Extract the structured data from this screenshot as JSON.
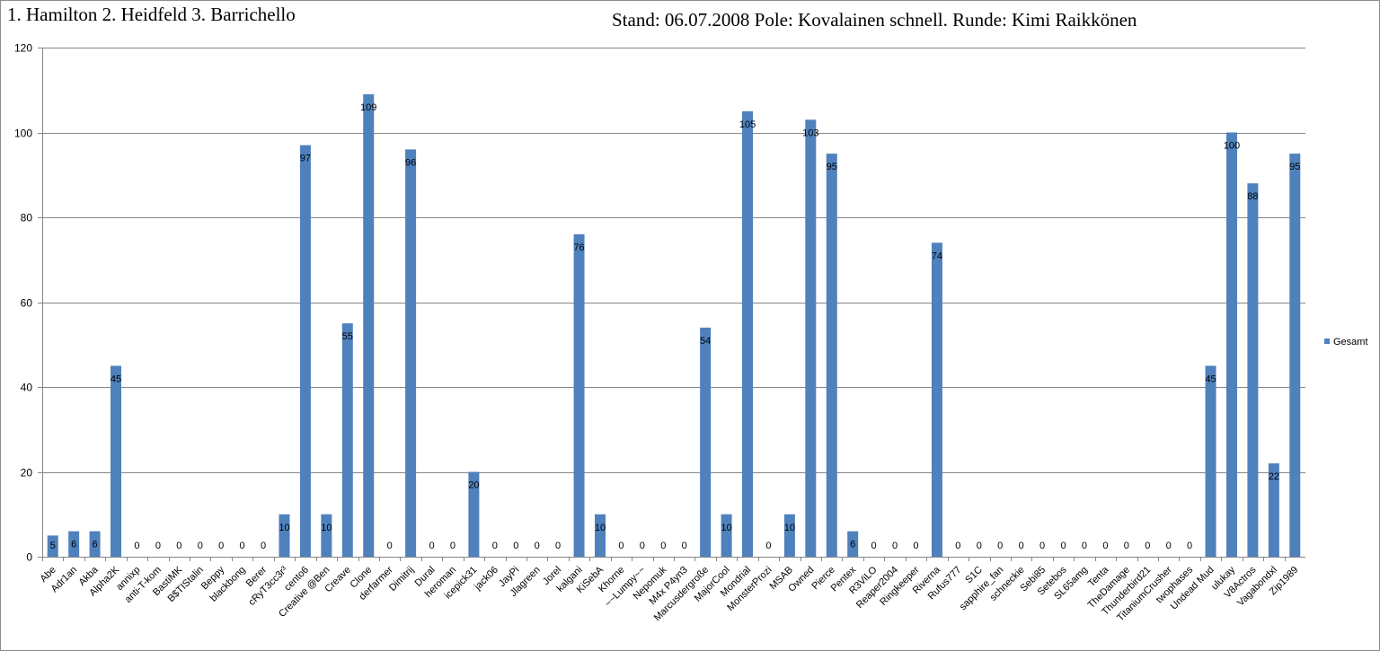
{
  "chart_data": {
    "type": "bar",
    "title_left": "1. Hamilton 2. Heidfeld 3. Barrichello",
    "title_right": "Stand: 06.07.2008   Pole: Kovalainen schnell. Runde: Kimi Raikkönen",
    "xlabel": "",
    "ylabel": "",
    "ylim": [
      0,
      120
    ],
    "yticks": [
      0,
      20,
      40,
      60,
      80,
      100,
      120
    ],
    "grid": true,
    "legend_position": "right",
    "colors": {
      "bar": "#4f81bd",
      "grid": "#868686",
      "axis": "#868686",
      "text": "#000000"
    },
    "categories": [
      "Abe",
      "Adr1an",
      "Akba",
      "Alpha2K",
      "annixp",
      "anti-T-kom",
      "BastiMK",
      "B$TIStalin",
      "Beppy",
      "blackbong",
      "Berer",
      "cRyT3cc3r³",
      "cento6",
      "Creative @Ben",
      "Creave",
      "Clone",
      "derfarmer",
      "Dimitrij",
      "Dural",
      "heroman",
      "icepick31",
      "jack06",
      "JayPi",
      "Jlagreen",
      "Jorel",
      "kalgani",
      "KiSebA",
      "Khorne",
      "~~Lumpy~~",
      "Nepomuk",
      "M4x P4yn3",
      "Marcusdergroße",
      "MajorCool",
      "Mondrial",
      "MonsterProzi",
      "MSAB",
      "Owned",
      "Pierce",
      "Pentex",
      "R3ViLO",
      "Reaper2004",
      "Ringkeeper",
      "Riverna",
      "Rufus777",
      "S1C",
      "sapphire_fan",
      "schneckie",
      "Sebi85",
      "Setebos",
      "SL65amg",
      "Tenta",
      "TheDamage",
      "Thunderbird21",
      "TitaniumCrusher",
      "twophases",
      "Undead Mud",
      "ulukay",
      "V8Actros",
      "Vagabondxl",
      "Zip1989"
    ],
    "series": [
      {
        "name": "Gesamt",
        "values": [
          5,
          6,
          6,
          45,
          0,
          0,
          0,
          0,
          0,
          0,
          0,
          10,
          97,
          10,
          55,
          109,
          0,
          96,
          0,
          0,
          20,
          0,
          0,
          0,
          0,
          76,
          10,
          0,
          0,
          0,
          0,
          54,
          10,
          105,
          0,
          10,
          103,
          95,
          6,
          0,
          0,
          0,
          74,
          0,
          0,
          0,
          0,
          0,
          0,
          0,
          0,
          0,
          0,
          0,
          0,
          45,
          100,
          88,
          22,
          95
        ]
      }
    ]
  }
}
